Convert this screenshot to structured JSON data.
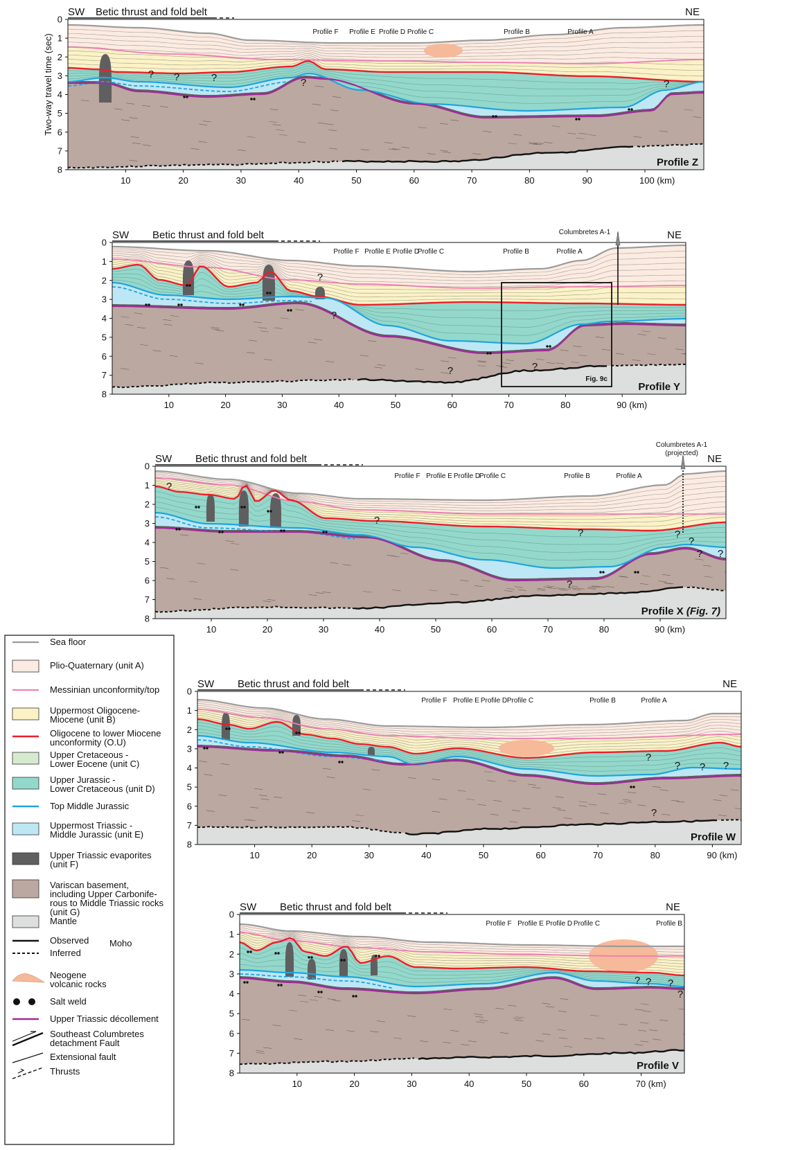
{
  "colors": {
    "sea_floor": "#9b9b9b",
    "unit_a": "#fcebe1",
    "messinian": "#f07bb3",
    "unit_b": "#fbf2c6",
    "ou_line": "#e8202a",
    "unit_c": "#d6ebcd",
    "unit_d": "#93d8cb",
    "top_mid_jurassic": "#1fa4df",
    "unit_e": "#bde7f4",
    "unit_f": "#5f5f60",
    "unit_g": "#bba8a1",
    "mantle": "#dcdfdd",
    "volcanic": "#f6b99a",
    "decollement": "#a2299b"
  },
  "axis_label": "Two-way travel time (sec)",
  "profiles": [
    {
      "name": "Profile Z",
      "sw": "SW",
      "ne": "NE",
      "belt": "Betic thrust and fold belt",
      "y_ticks": [
        "0",
        "1",
        "2",
        "3",
        "4",
        "5",
        "6",
        "7",
        "8"
      ],
      "x_ticks": [
        "10",
        "20",
        "30",
        "40",
        "50",
        "60",
        "70",
        "80",
        "90",
        "100 (km)"
      ],
      "markers": [
        "Profile F",
        "Profile E",
        "Profile D",
        "Profile C",
        "Profile B",
        "Profile A"
      ]
    },
    {
      "name": "Profile Y",
      "sw": "SW",
      "ne": "NE",
      "belt": "Betic thrust and fold belt",
      "well": "Columbretes A-1",
      "box_label": "Fig. 9c",
      "y_ticks": [
        "0",
        "1",
        "2",
        "3",
        "4",
        "5",
        "6",
        "7",
        "8"
      ],
      "x_ticks": [
        "10",
        "20",
        "30",
        "40",
        "50",
        "60",
        "70",
        "80",
        "90 (km)"
      ],
      "markers": [
        "Profile F",
        "Profile E",
        "Profile D",
        "Profile C",
        "Profile B",
        "Profile A"
      ]
    },
    {
      "name": "Profile X",
      "name_suffix": "(Fig. 7)",
      "sw": "SW",
      "ne": "NE",
      "belt": "Betic thrust and fold belt",
      "well": "Columbretes A-1",
      "well_note": "(projected)",
      "y_ticks": [
        "0",
        "1",
        "2",
        "3",
        "4",
        "5",
        "6",
        "7",
        "8"
      ],
      "x_ticks": [
        "10",
        "20",
        "30",
        "40",
        "50",
        "60",
        "70",
        "80",
        "90 (km)"
      ],
      "markers": [
        "Profile F",
        "Profile E",
        "Profile D",
        "Profile C",
        "Profile B",
        "Profile A"
      ]
    },
    {
      "name": "Profile W",
      "sw": "SW",
      "ne": "NE",
      "belt": "Betic thrust and fold belt",
      "y_ticks": [
        "0",
        "1",
        "2",
        "3",
        "4",
        "5",
        "6",
        "7",
        "8"
      ],
      "x_ticks": [
        "10",
        "20",
        "30",
        "40",
        "50",
        "60",
        "70",
        "80",
        "90 (km)"
      ],
      "markers": [
        "Profile F",
        "Profile E",
        "Profile D",
        "Profile C",
        "Profile B",
        "Profile A"
      ]
    },
    {
      "name": "Profile V",
      "sw": "SW",
      "ne": "NE",
      "belt": "Betic thrust and fold belt",
      "y_ticks": [
        "0",
        "1",
        "2",
        "3",
        "4",
        "5",
        "6",
        "7",
        "8"
      ],
      "x_ticks": [
        "10",
        "20",
        "30",
        "40",
        "50",
        "60",
        "70 (km)"
      ],
      "markers": [
        "Profile F",
        "Profile E",
        "Profile D",
        "Profile C",
        "Profile B"
      ]
    }
  ],
  "legend": {
    "sea_floor": "Sea floor",
    "unit_a": "Plio-Quaternary (unit A)",
    "messinian": "Messinian unconformity/top",
    "unit_b": [
      "Uppermost Oligocene-",
      "Miocene (unit B)"
    ],
    "ou": [
      "Oligocene to lower Miocene",
      "unconformity (O.U)"
    ],
    "unit_c": [
      "Upper Cretaceous -",
      "Lower Eocene (unit C)"
    ],
    "unit_d": [
      "Upper Jurassic -",
      "Lower Cretaceous (unit D)"
    ],
    "top_mid_jurassic": "Top Middle Jurassic",
    "unit_e": [
      "Uppermost Triassic -",
      "Middle Jurassic (unit E)"
    ],
    "unit_f": [
      "Upper Triassic evaporites",
      "(unit F)"
    ],
    "unit_g": [
      "Variscan basement,",
      "including Upper Carbonife-",
      "rous to Middle Triassic rocks",
      "(unit G)"
    ],
    "mantle": "Mantle",
    "observed": "Observed",
    "inferred": "Inferred",
    "moho": "Moho",
    "volcanic": [
      "Neogene",
      "volcanic rocks"
    ],
    "salt_weld": "Salt weld",
    "decollement": "Upper Triassic décollement",
    "detachment": [
      "Southeast Columbretes",
      "detachment Fault"
    ],
    "extensional": "Extensional fault",
    "thrusts": "Thrusts"
  }
}
